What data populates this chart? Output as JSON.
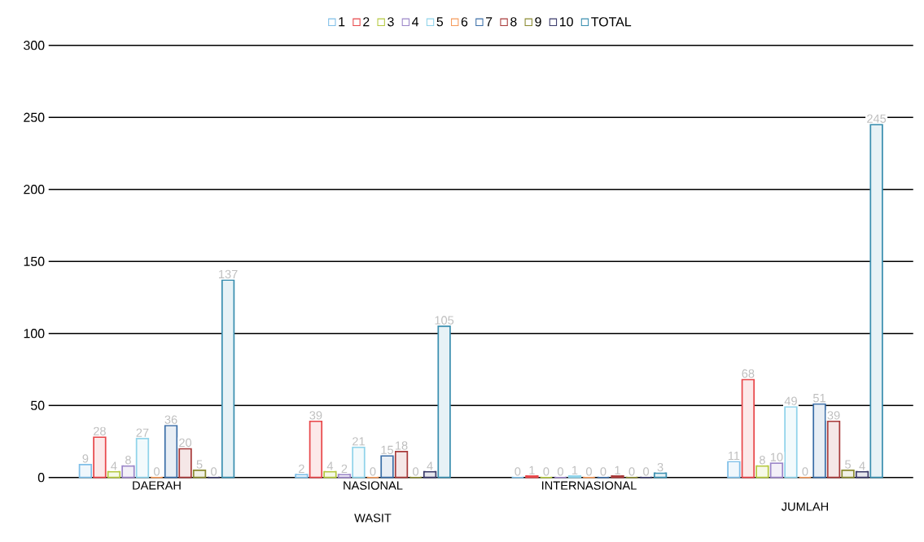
{
  "chart_data": {
    "type": "bar",
    "categories": [
      "DAERAH",
      "NASIONAL",
      "INTERNASIONAL",
      "JUMLAH"
    ],
    "xlabel": "WASIT",
    "series": [
      {
        "name": "1",
        "color": "#7fbfe8",
        "values": [
          9,
          2,
          0,
          11
        ]
      },
      {
        "name": "2",
        "color": "#e8474a",
        "values": [
          28,
          39,
          1,
          68
        ]
      },
      {
        "name": "3",
        "color": "#b5c940",
        "values": [
          4,
          4,
          0,
          8
        ]
      },
      {
        "name": "4",
        "color": "#9b86c8",
        "values": [
          8,
          2,
          0,
          10
        ]
      },
      {
        "name": "5",
        "color": "#8fd3ea",
        "values": [
          27,
          21,
          1,
          49
        ]
      },
      {
        "name": "6",
        "color": "#f59a5a",
        "values": [
          0,
          0,
          0,
          0
        ]
      },
      {
        "name": "7",
        "color": "#3c6fa8",
        "values": [
          36,
          15,
          0,
          51
        ]
      },
      {
        "name": "8",
        "color": "#a83a3a",
        "values": [
          20,
          18,
          1,
          39
        ]
      },
      {
        "name": "9",
        "color": "#8a8a30",
        "values": [
          5,
          0,
          0,
          5
        ]
      },
      {
        "name": "10",
        "color": "#3a3a6a",
        "values": [
          0,
          4,
          0,
          4
        ]
      },
      {
        "name": "TOTAL",
        "color": "#3b8fb0",
        "values": [
          137,
          105,
          3,
          245
        ]
      }
    ],
    "ylim": [
      0,
      300
    ],
    "yticks": [
      0,
      50,
      100,
      150,
      200,
      250,
      300
    ],
    "grid": "y",
    "legend": "top",
    "data_labels": true
  }
}
